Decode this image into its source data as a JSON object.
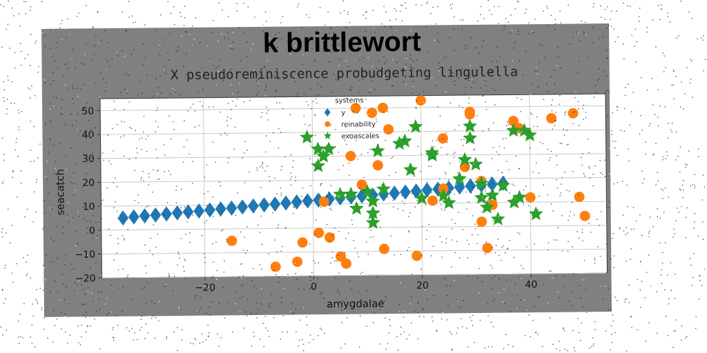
{
  "figure": {
    "suptitle": "k brittlewort",
    "background": "#808080"
  },
  "chart_data": {
    "type": "scatter",
    "title": "X pseudoreminiscence probudgeting lingulella",
    "xlabel": "amygdalae",
    "ylabel": "seacatch",
    "xlim": [
      -39,
      54
    ],
    "ylim": [
      -20,
      55
    ],
    "xticks": [
      -20,
      0,
      20,
      40
    ],
    "xtick_labels": [
      "−20",
      "0",
      "20",
      "40"
    ],
    "yticks": [
      -20,
      -10,
      0,
      10,
      20,
      30,
      40,
      50
    ],
    "ytick_labels": [
      "−20",
      "−10",
      "0",
      "10",
      "20",
      "30",
      "40",
      "50"
    ],
    "grid": true,
    "legend": {
      "title": "systems",
      "placement": "upper-center"
    },
    "series": [
      {
        "name": "y",
        "marker": "diamond",
        "color": "#1f77b4",
        "x": [
          -35,
          -33,
          -31,
          -29,
          -27,
          -25,
          -23,
          -21,
          -19,
          -17,
          -15,
          -13,
          -11,
          -9,
          -7,
          -5,
          -3,
          -1,
          1,
          3,
          5,
          7,
          9,
          11,
          13,
          15,
          17,
          19,
          21,
          23,
          25,
          27,
          29,
          31,
          33,
          35
        ],
        "y": [
          5.0,
          5.4,
          5.8,
          6.1,
          6.5,
          6.9,
          7.3,
          7.6,
          8.0,
          8.4,
          8.7,
          9.1,
          9.5,
          9.9,
          10.2,
          10.6,
          11.0,
          11.4,
          11.7,
          12.1,
          12.5,
          12.9,
          13.2,
          13.6,
          14.0,
          14.3,
          14.7,
          15.1,
          15.5,
          15.8,
          16.2,
          16.6,
          17.0,
          17.3,
          17.7,
          18.0
        ]
      },
      {
        "name": "reinability",
        "marker": "circle",
        "color": "#ff7f0e",
        "x": [
          -15,
          -7,
          -3,
          -2,
          1,
          2,
          3,
          5,
          6,
          7,
          9,
          12,
          13,
          13,
          19,
          20,
          22,
          24,
          28,
          29,
          29,
          31,
          31,
          32,
          33,
          37,
          40,
          44,
          48,
          49,
          50,
          8,
          11,
          14,
          24,
          38
        ],
        "y": [
          -5,
          -16,
          -14,
          -6,
          -2,
          11,
          -4,
          -12,
          -15,
          30,
          18,
          26,
          -9,
          50,
          -12,
          53,
          11,
          16,
          25,
          47,
          48,
          2,
          19,
          -9,
          9,
          44,
          12,
          45,
          47,
          12,
          4,
          50,
          48,
          41,
          37,
          41
        ]
      },
      {
        "name": "exoascales",
        "marker": "star",
        "color": "#2ca02c",
        "x": [
          -1,
          1,
          1,
          2,
          3,
          5,
          7,
          8,
          10,
          11,
          11,
          12,
          13,
          16,
          17,
          18,
          19,
          20,
          22,
          22,
          24,
          25,
          27,
          28,
          29,
          29,
          30,
          31,
          31,
          32,
          33,
          34,
          35,
          37,
          38,
          39,
          40,
          37,
          41,
          11
        ],
        "y": [
          38,
          26,
          33,
          30,
          33,
          14,
          14,
          8,
          15,
          6,
          2,
          32,
          16,
          35,
          36,
          24,
          42,
          12,
          30,
          31,
          13,
          10,
          20,
          28,
          37,
          42,
          26,
          18,
          12,
          8,
          13,
          3,
          17,
          10,
          12,
          40,
          38,
          40,
          5,
          11
        ]
      }
    ]
  }
}
